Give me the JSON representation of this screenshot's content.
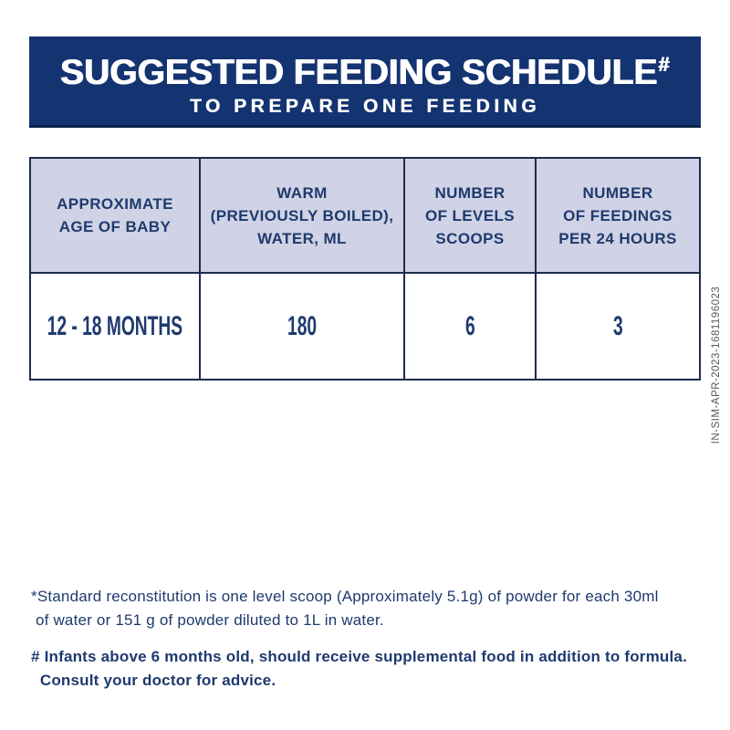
{
  "banner": {
    "title": "SUGGESTED FEEDING SCHEDULE",
    "title_superscript": "#",
    "subtitle": "TO PREPARE ONE FEEDING"
  },
  "table": {
    "columns": [
      {
        "header": "APPROXIMATE\nAGE OF BABY"
      },
      {
        "header": "WARM\n(PREVIOUSLY BOILED),\nWATER, ML"
      },
      {
        "header": "NUMBER\nOF LEVELS\nSCOOPS"
      },
      {
        "header": "NUMBER\nOF FEEDINGS\nPER 24 HOURS"
      }
    ],
    "rows": [
      [
        "12 - 18 MONTHS",
        "180",
        "6",
        "3"
      ]
    ]
  },
  "side_code": "IN-SIM-APR-2023-1681196023",
  "footnotes": {
    "standard": "*Standard reconstitution is one level scoop (Approximately 5.1g) of powder for each 30ml\n of water or 151 g of powder diluted to 1L in water.",
    "supplemental": "# Infants above 6 months old, should receive supplemental food in addition to formula.\n  Consult your doctor for advice."
  },
  "colors": {
    "banner_bg": "#143371",
    "header_cell_bg": "#d0d2e5",
    "table_border": "#1c2b4f",
    "navy_text": "#1e3a6e",
    "code_text": "#58585a"
  }
}
